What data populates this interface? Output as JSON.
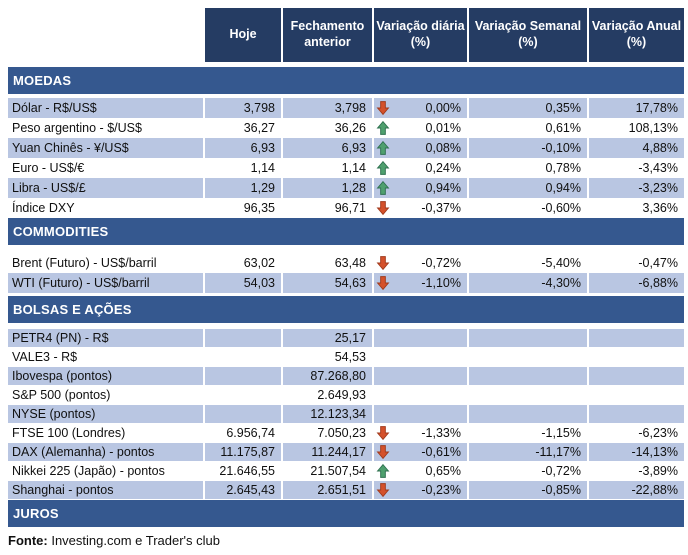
{
  "header": {
    "columns": [
      "Hoje",
      "Fechamento anterior",
      "Variação diária (%)",
      "Variação Semanal (%)",
      "Variação Anual (%)"
    ]
  },
  "sections": [
    {
      "title": "MOEDAS",
      "rows": [
        {
          "label": "Dólar - R$/US$",
          "hoje": "3,798",
          "fechamento": "3,798",
          "arrow": "down",
          "diaria": "0,00%",
          "semanal": "0,35%",
          "anual": "17,78%",
          "stripe": "blue"
        },
        {
          "label": "Peso argentino - $/US$",
          "hoje": "36,27",
          "fechamento": "36,26",
          "arrow": "up",
          "diaria": "0,01%",
          "semanal": "0,61%",
          "anual": "108,13%",
          "stripe": "white"
        },
        {
          "label": "Yuan Chinês - ¥/US$",
          "hoje": "6,93",
          "fechamento": "6,93",
          "arrow": "up",
          "diaria": "0,08%",
          "semanal": "-0,10%",
          "anual": "4,88%",
          "stripe": "blue"
        },
        {
          "label": "Euro - US$/€",
          "hoje": "1,14",
          "fechamento": "1,14",
          "arrow": "up",
          "diaria": "0,24%",
          "semanal": "0,78%",
          "anual": "-3,43%",
          "stripe": "white"
        },
        {
          "label": "Libra - US$/£",
          "hoje": "1,29",
          "fechamento": "1,28",
          "arrow": "up",
          "diaria": "0,94%",
          "semanal": "0,94%",
          "anual": "-3,23%",
          "stripe": "blue"
        },
        {
          "label": "Índice DXY",
          "hoje": "96,35",
          "fechamento": "96,71",
          "arrow": "down",
          "diaria": "-0,37%",
          "semanal": "-0,60%",
          "anual": "3,36%",
          "stripe": "white"
        }
      ]
    },
    {
      "title": "COMMODITIES",
      "rows": [
        {
          "label": "Brent (Futuro) - US$/barril",
          "hoje": "63,02",
          "fechamento": "63,48",
          "arrow": "down",
          "diaria": "-0,72%",
          "semanal": "-5,40%",
          "anual": "-0,47%",
          "stripe": "white"
        },
        {
          "label": "WTI (Futuro) - US$/barril",
          "hoje": "54,03",
          "fechamento": "54,63",
          "arrow": "down",
          "diaria": "-1,10%",
          "semanal": "-4,30%",
          "anual": "-6,88%",
          "stripe": "blue"
        }
      ]
    },
    {
      "title": "BOLSAS E AÇÕES",
      "rows": [
        {
          "label": "PETR4 (PN) - R$",
          "hoje": "",
          "fechamento": "25,17",
          "arrow": "",
          "diaria": "",
          "semanal": "",
          "anual": "",
          "stripe": "blue"
        },
        {
          "label": "VALE3 - R$",
          "hoje": "",
          "fechamento": "54,53",
          "arrow": "",
          "diaria": "",
          "semanal": "",
          "anual": "",
          "stripe": "white"
        },
        {
          "label": "Ibovespa (pontos)",
          "hoje": "",
          "fechamento": "87.268,80",
          "arrow": "",
          "diaria": "",
          "semanal": "",
          "anual": "",
          "stripe": "blue"
        },
        {
          "label": "S&P 500 (pontos)",
          "hoje": "",
          "fechamento": "2.649,93",
          "arrow": "",
          "diaria": "",
          "semanal": "",
          "anual": "",
          "stripe": "white"
        },
        {
          "label": "NYSE (pontos)",
          "hoje": "",
          "fechamento": "12.123,34",
          "arrow": "",
          "diaria": "",
          "semanal": "",
          "anual": "",
          "stripe": "blue"
        },
        {
          "label": "FTSE 100 (Londres)",
          "hoje": "6.956,74",
          "fechamento": "7.050,23",
          "arrow": "down",
          "diaria": "-1,33%",
          "semanal": "-1,15%",
          "anual": "-6,23%",
          "stripe": "white"
        },
        {
          "label": "DAX (Alemanha) - pontos",
          "hoje": "11.175,87",
          "fechamento": "11.244,17",
          "arrow": "down",
          "diaria": "-0,61%",
          "semanal": "-11,17%",
          "anual": "-14,13%",
          "stripe": "blue"
        },
        {
          "label": "Nikkei 225 (Japão) - pontos",
          "hoje": "21.646,55",
          "fechamento": "21.507,54",
          "arrow": "up",
          "diaria": "0,65%",
          "semanal": "-0,72%",
          "anual": "-3,89%",
          "stripe": "white"
        },
        {
          "label": "Shanghai - pontos",
          "hoje": "2.645,43",
          "fechamento": "2.651,51",
          "arrow": "down",
          "diaria": "-0,23%",
          "semanal": "-0,85%",
          "anual": "-22,88%",
          "stripe": "blue"
        }
      ]
    },
    {
      "title": "JUROS",
      "rows": []
    }
  ],
  "footer": {
    "label": "Fonte:",
    "text": " Investing.com e Trader's club"
  },
  "colors": {
    "header_bg": "#253C63",
    "section_bg": "#35588F",
    "row_blue": "#B9C6E2",
    "text": "#101010",
    "arrow_up": "#4FA06E",
    "arrow_up_edge": "#2F7050",
    "arrow_down": "#D4512B",
    "arrow_down_edge": "#A03A1C"
  }
}
